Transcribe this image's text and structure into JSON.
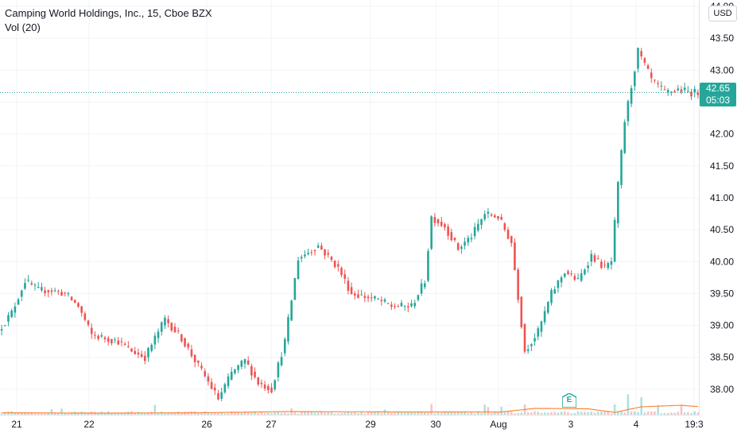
{
  "header": {
    "symbol_title": "Camping World Holdings, Inc., 15, Cboe BZX",
    "indicator": "Vol (20)"
  },
  "currency": "USD",
  "last_price": {
    "price": "42.65",
    "countdown": "05:03"
  },
  "earnings_marker": "E",
  "colors": {
    "up": "#26a69a",
    "down": "#ef5350",
    "grid": "#f0f3fa",
    "vol_ma": "#f7893a"
  },
  "chart_data": {
    "type": "candlestick",
    "title": "Camping World Holdings, Inc., 15, Cboe BZX",
    "y_axis": {
      "ticks": [
        38.0,
        38.5,
        39.0,
        39.5,
        40.0,
        40.5,
        41.0,
        41.5,
        42.0,
        42.5,
        43.0,
        43.5,
        44.0
      ],
      "ylim": [
        37.6,
        44.1
      ],
      "position": "right"
    },
    "x_axis": {
      "ticks": [
        "21",
        "22",
        "26",
        "27",
        "29",
        "30",
        "Aug",
        "3",
        "4",
        "19:3"
      ]
    },
    "grid": true,
    "price_path": [
      [
        0,
        38.92
      ],
      [
        4,
        39.2
      ],
      [
        8,
        39.7
      ],
      [
        12,
        39.55
      ],
      [
        16,
        39.55
      ],
      [
        20,
        39.5
      ],
      [
        24,
        39.3
      ],
      [
        28,
        38.85
      ],
      [
        32,
        38.8
      ],
      [
        36,
        38.75
      ],
      [
        40,
        38.6
      ],
      [
        44,
        38.5
      ],
      [
        46,
        38.7
      ],
      [
        50,
        39.1
      ],
      [
        55,
        38.8
      ],
      [
        59,
        38.45
      ],
      [
        62,
        38.2
      ],
      [
        66,
        37.85
      ],
      [
        70,
        38.25
      ],
      [
        74,
        38.45
      ],
      [
        78,
        38.1
      ],
      [
        82,
        38.0
      ],
      [
        86,
        38.75
      ],
      [
        90,
        40.05
      ],
      [
        96,
        40.25
      ],
      [
        102,
        39.9
      ],
      [
        106,
        39.5
      ],
      [
        110,
        39.45
      ],
      [
        114,
        39.4
      ],
      [
        118,
        39.3
      ],
      [
        124,
        39.3
      ],
      [
        128,
        39.7
      ],
      [
        130,
        40.7
      ],
      [
        134,
        40.55
      ],
      [
        138,
        40.2
      ],
      [
        142,
        40.4
      ],
      [
        146,
        40.75
      ],
      [
        150,
        40.7
      ],
      [
        154,
        40.3
      ],
      [
        158,
        38.6
      ],
      [
        162,
        38.9
      ],
      [
        166,
        39.5
      ],
      [
        170,
        39.85
      ],
      [
        174,
        39.7
      ],
      [
        178,
        40.1
      ],
      [
        182,
        39.9
      ],
      [
        184,
        40.0
      ],
      [
        186,
        41.2
      ],
      [
        188,
        42.2
      ],
      [
        192,
        43.3
      ],
      [
        196,
        42.85
      ],
      [
        200,
        42.65
      ],
      [
        204,
        42.7
      ],
      [
        208,
        42.65
      ]
    ],
    "volume_ma": [
      [
        0,
        0.05
      ],
      [
        30,
        0.04
      ],
      [
        60,
        0.05
      ],
      [
        86,
        0.08
      ],
      [
        120,
        0.07
      ],
      [
        150,
        0.07
      ],
      [
        160,
        0.16
      ],
      [
        176,
        0.15
      ],
      [
        184,
        0.06
      ],
      [
        192,
        0.2
      ],
      [
        204,
        0.24
      ],
      [
        208,
        0.21
      ]
    ],
    "volume_peaks": [
      [
        150,
        0.28
      ],
      [
        184,
        0.3
      ],
      [
        188,
        0.6
      ],
      [
        192,
        0.45
      ],
      [
        204,
        0.18
      ]
    ]
  }
}
